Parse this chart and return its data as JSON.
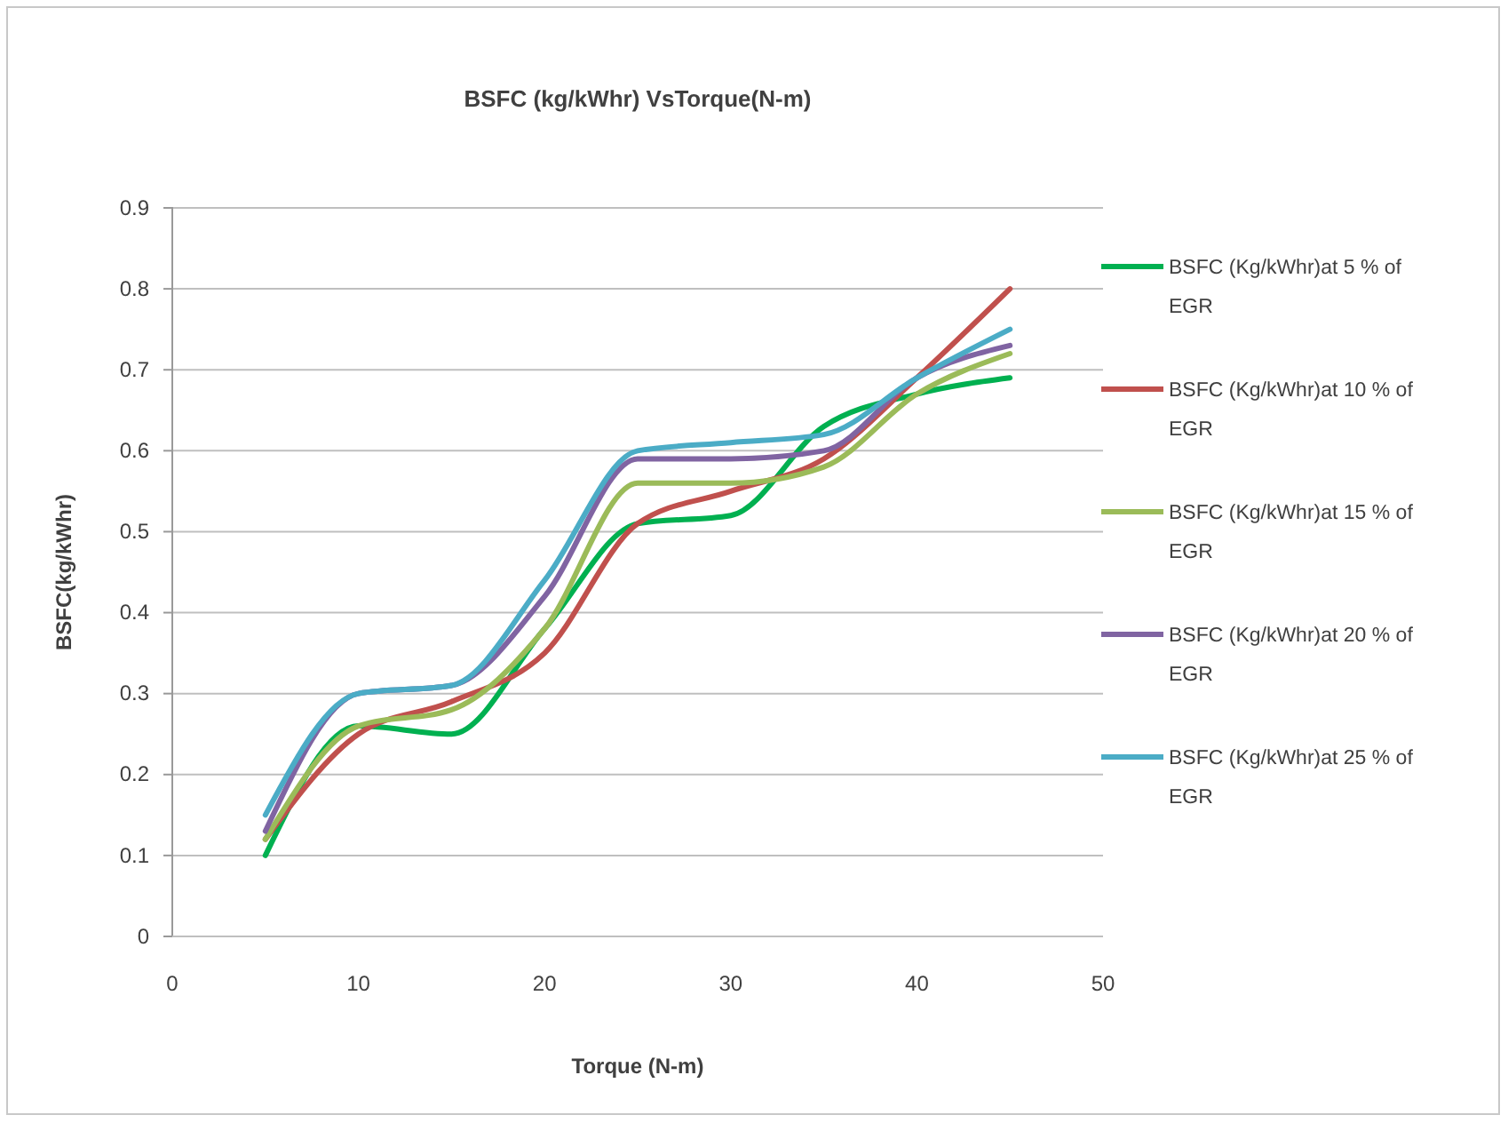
{
  "chart_data": {
    "type": "line",
    "title": "BSFC (kg/kWhr) VsTorque(N-m)",
    "xlabel": "Torque (N-m)",
    "ylabel": "BSFC(kg/kWhr)",
    "x": [
      5,
      10,
      15,
      20,
      25,
      30,
      35,
      40,
      45
    ],
    "series": [
      {
        "name": "BSFC (Kg/kWhr)at 5 % of EGR",
        "color": "#00b050",
        "values": [
          0.1,
          0.26,
          0.25,
          0.38,
          0.51,
          0.52,
          0.63,
          0.67,
          0.69
        ]
      },
      {
        "name": "BSFC (Kg/kWhr)at 10 % of EGR",
        "color": "#c0504d",
        "values": [
          0.12,
          0.25,
          0.29,
          0.35,
          0.51,
          0.55,
          0.59,
          0.69,
          0.8
        ]
      },
      {
        "name": "BSFC (Kg/kWhr)at 15 % of EGR",
        "color": "#9bbb59",
        "values": [
          0.12,
          0.26,
          0.28,
          0.38,
          0.56,
          0.56,
          0.58,
          0.67,
          0.72
        ]
      },
      {
        "name": "BSFC (Kg/kWhr)at 20 % of EGR",
        "color": "#8064a2",
        "values": [
          0.13,
          0.3,
          0.31,
          0.42,
          0.59,
          0.59,
          0.6,
          0.69,
          0.73
        ]
      },
      {
        "name": "BSFC (Kg/kWhr)at 25 % of EGR",
        "color": "#4bacc6",
        "values": [
          0.15,
          0.3,
          0.31,
          0.44,
          0.6,
          0.61,
          0.62,
          0.69,
          0.75
        ]
      }
    ],
    "xlim": [
      0,
      50
    ],
    "xticks": [
      0,
      10,
      20,
      30,
      40,
      50
    ],
    "ylim": [
      0,
      0.9
    ],
    "yticks": [
      0,
      0.1,
      0.2,
      0.3,
      0.4,
      0.5,
      0.6,
      0.7,
      0.8,
      0.9
    ],
    "grid": "y",
    "legend": "right",
    "marker": "none",
    "line_style": "solid"
  }
}
